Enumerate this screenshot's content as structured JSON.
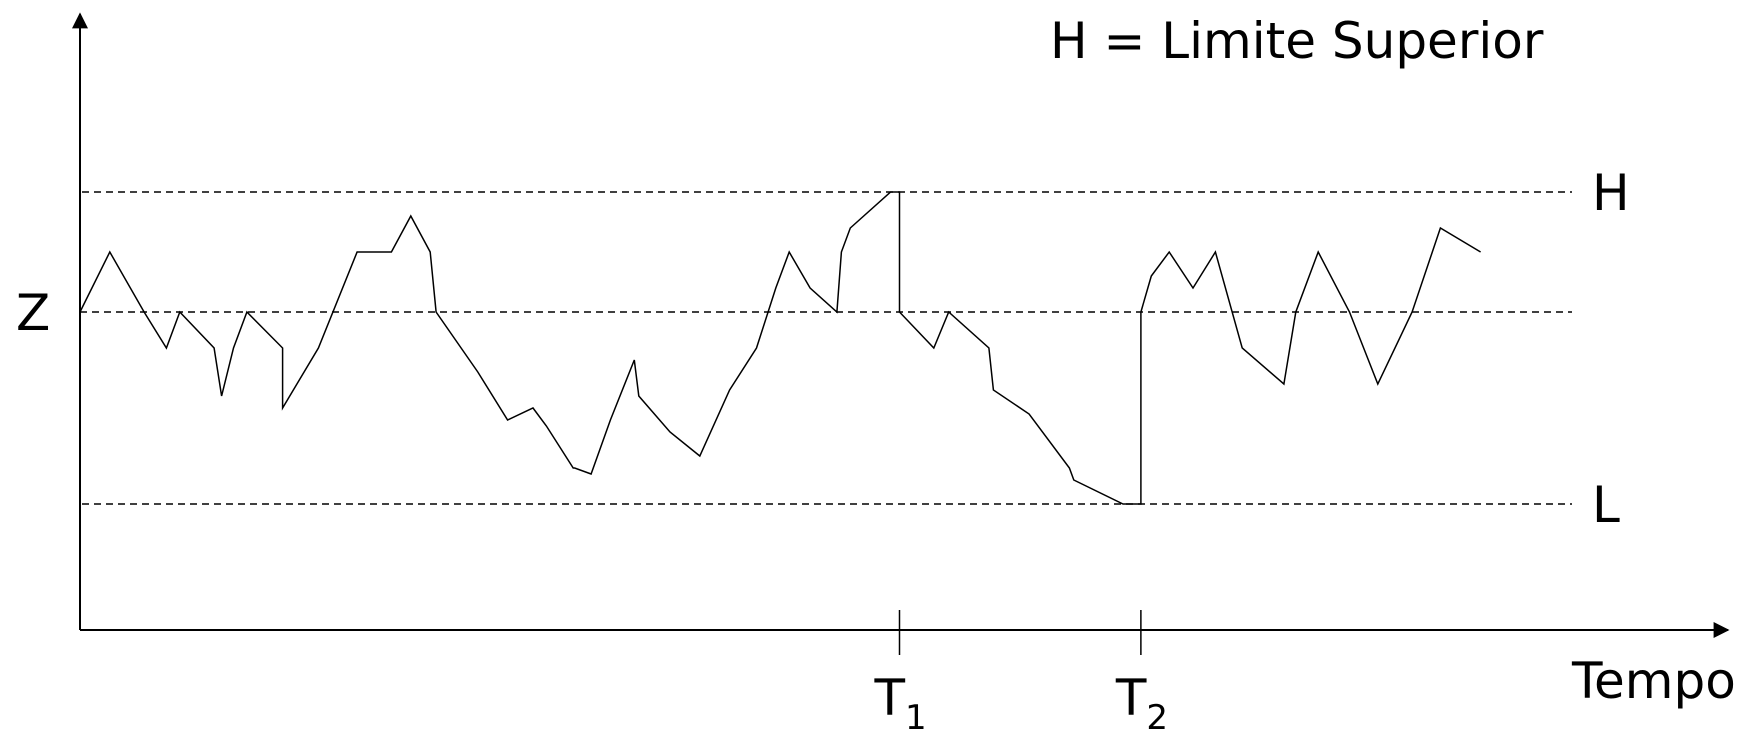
{
  "chart_data": {
    "type": "line",
    "title": "",
    "annotation": "H = Limite Superior",
    "xlabel": "Tempo",
    "ylabel": "",
    "xlim": [
      0,
      100
    ],
    "ylim": [
      -0.5,
      3
    ],
    "levels": [
      {
        "label": "H",
        "y": 2.0
      },
      {
        "label": "Z",
        "y": 1.0
      },
      {
        "label": "L",
        "y": -0.6
      }
    ],
    "ticks": [
      {
        "label": "T",
        "sub": "1",
        "x": 55.0
      },
      {
        "label": "T",
        "sub": "2",
        "x": 71.2
      }
    ],
    "series": [
      {
        "x": [
          0,
          2.0,
          4.3,
          5.8,
          6.7,
          9.0,
          9.5,
          10.3,
          11.2,
          13.6,
          13.6,
          16.0,
          18.6,
          20.9,
          22.2,
          22.2,
          22.2,
          23.5,
          23.9,
          26.7,
          28.7,
          30.4,
          31.3,
          33.1,
          33.2,
          34.3,
          35.6,
          37.2,
          37.5,
          39.6,
          41.6,
          41.6,
          43.6,
          45.4,
          46.7,
          47.6,
          49.0,
          50.8,
          51.1,
          51.7,
          54.4,
          55.0,
          55.0,
          57.3,
          58.3,
          61.0,
          61.3,
          63.7,
          66.4,
          66.7,
          70.0,
          71.0,
          71.2,
          71.2,
          71.9,
          73.1,
          74.7,
          76.2,
          78.0,
          80.8,
          81.6,
          83.1,
          85.2,
          87.1,
          89.4,
          91.3,
          94.0
        ],
        "y": [
          1.0,
          1.5,
          1.0,
          0.7,
          1.0,
          0.7,
          0.3,
          0.7,
          1.0,
          0.7,
          0.2,
          0.7,
          1.5,
          1.5,
          1.8,
          1.8,
          1.8,
          1.5,
          1.0,
          0.5,
          0.1,
          0.2,
          0.05,
          -0.3,
          -0.3,
          -0.35,
          0.1,
          0.6,
          0.3,
          0.0,
          -0.2,
          -0.2,
          0.35,
          0.7,
          1.2,
          1.5,
          1.2,
          1.0,
          1.5,
          1.7,
          2.0,
          2.0,
          1.0,
          0.7,
          1.0,
          0.7,
          0.35,
          0.15,
          -0.3,
          -0.4,
          -0.6,
          -0.6,
          -0.6,
          1.0,
          1.3,
          1.5,
          1.2,
          1.5,
          0.7,
          0.4,
          1.0,
          1.5,
          1.0,
          0.4,
          1.0,
          1.7,
          1.5
        ]
      }
    ],
    "grid": false,
    "legend": "none"
  }
}
